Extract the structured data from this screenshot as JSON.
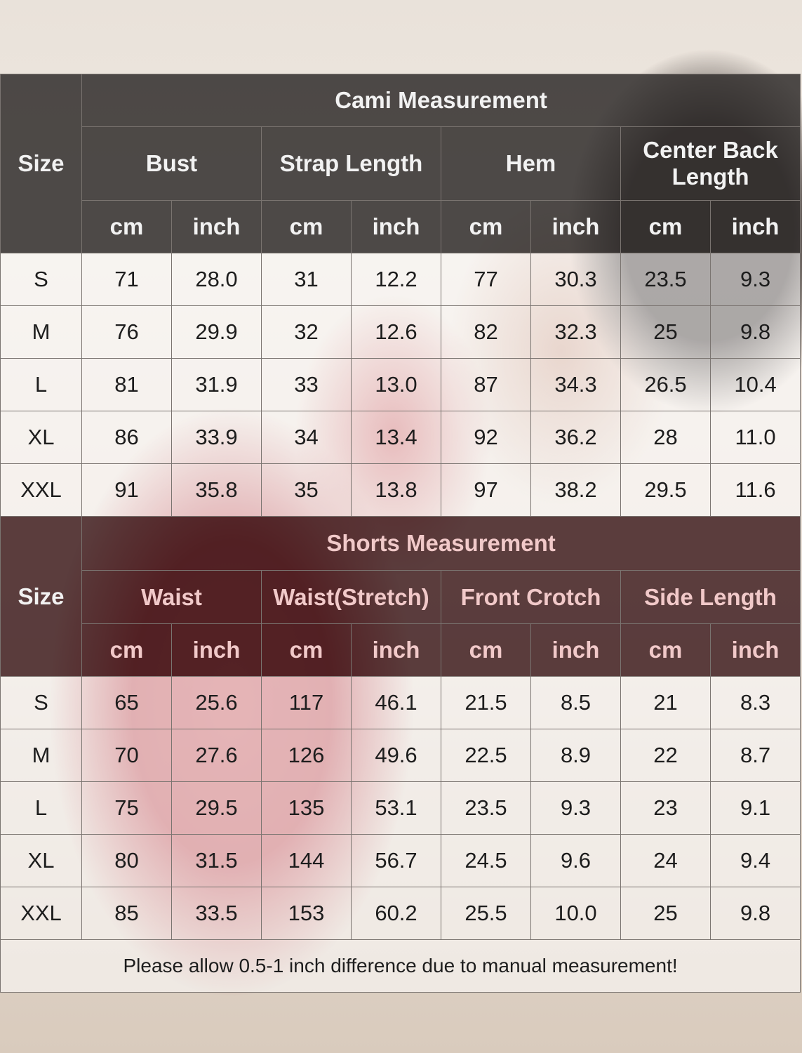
{
  "cami": {
    "size_label": "Size",
    "title": "Cami Measurement",
    "groups": [
      "Bust",
      "Strap Length",
      "Hem",
      "Center Back Length"
    ],
    "units": [
      "cm",
      "inch",
      "cm",
      "inch",
      "cm",
      "inch",
      "cm",
      "inch"
    ],
    "rows": [
      [
        "S",
        "71",
        "28.0",
        "31",
        "12.2",
        "77",
        "30.3",
        "23.5",
        "9.3"
      ],
      [
        "M",
        "76",
        "29.9",
        "32",
        "12.6",
        "82",
        "32.3",
        "25",
        "9.8"
      ],
      [
        "L",
        "81",
        "31.9",
        "33",
        "13.0",
        "87",
        "34.3",
        "26.5",
        "10.4"
      ],
      [
        "XL",
        "86",
        "33.9",
        "34",
        "13.4",
        "92",
        "36.2",
        "28",
        "11.0"
      ],
      [
        "XXL",
        "91",
        "35.8",
        "35",
        "13.8",
        "97",
        "38.2",
        "29.5",
        "11.6"
      ]
    ]
  },
  "shorts": {
    "size_label": "Size",
    "title": "Shorts Measurement",
    "groups": [
      "Waist",
      "Waist(Stretch)",
      "Front Crotch",
      "Side Length"
    ],
    "units": [
      "cm",
      "inch",
      "cm",
      "inch",
      "cm",
      "inch",
      "cm",
      "inch"
    ],
    "rows": [
      [
        "S",
        "65",
        "25.6",
        "117",
        "46.1",
        "21.5",
        "8.5",
        "21",
        "8.3"
      ],
      [
        "M",
        "70",
        "27.6",
        "126",
        "49.6",
        "22.5",
        "8.9",
        "22",
        "8.7"
      ],
      [
        "L",
        "75",
        "29.5",
        "135",
        "53.1",
        "23.5",
        "9.3",
        "23",
        "9.1"
      ],
      [
        "XL",
        "80",
        "31.5",
        "144",
        "56.7",
        "24.5",
        "9.6",
        "24",
        "9.4"
      ],
      [
        "XXL",
        "85",
        "33.5",
        "153",
        "60.2",
        "25.5",
        "10.0",
        "25",
        "9.8"
      ]
    ]
  },
  "note": "Please allow 0.5-1 inch difference due to manual measurement!",
  "colors": {
    "header": "#322e2d",
    "shorts_header": "#371416"
  }
}
